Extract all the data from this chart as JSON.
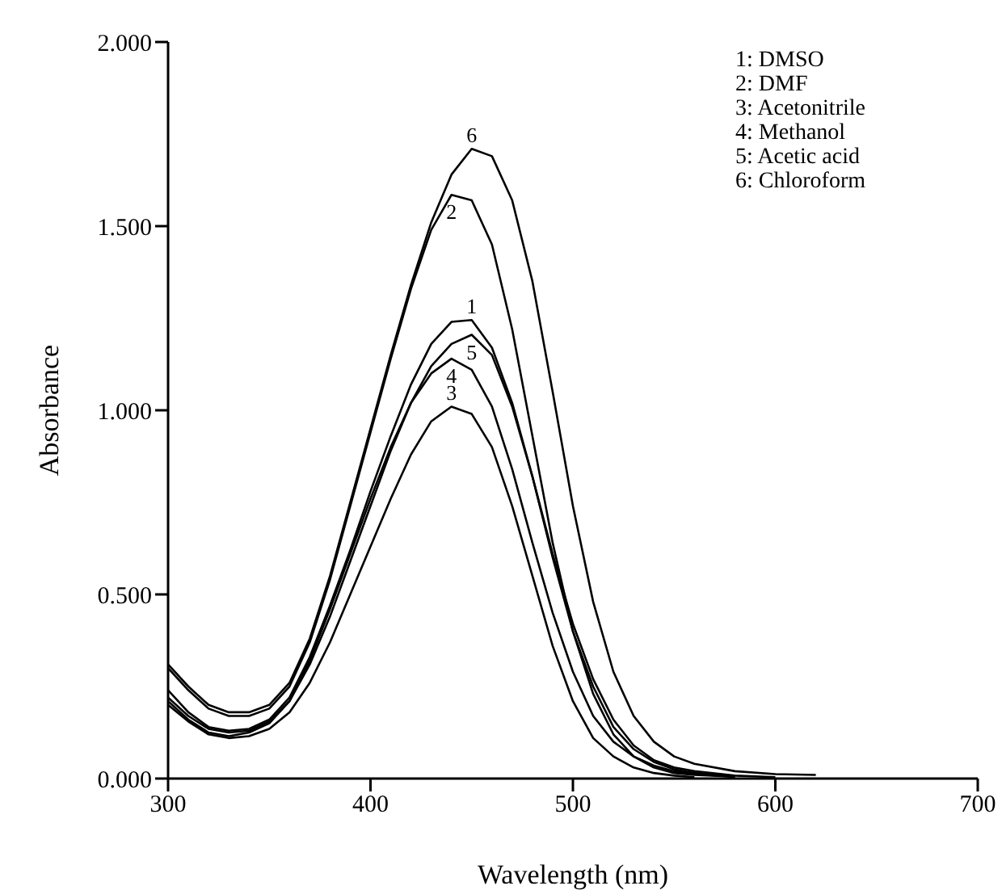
{
  "chart_data": {
    "type": "line",
    "xlabel": "Wavelength (nm)",
    "ylabel": "Absorbance",
    "x": [
      300,
      310,
      320,
      330,
      340,
      350,
      360,
      370,
      380,
      390,
      400,
      410,
      420,
      430,
      440,
      450,
      460,
      470,
      480,
      490,
      500,
      510,
      520,
      530,
      540,
      550,
      560,
      580,
      600,
      620
    ],
    "series": [
      {
        "name": "1",
        "color": "#000000",
        "values": [
          0.24,
          0.18,
          0.14,
          0.13,
          0.135,
          0.16,
          0.22,
          0.33,
          0.47,
          0.62,
          0.78,
          0.93,
          1.07,
          1.18,
          1.24,
          1.245,
          1.17,
          1.02,
          0.82,
          0.6,
          0.4,
          0.25,
          0.14,
          0.08,
          0.045,
          0.025,
          0.015,
          0.005,
          null,
          null
        ]
      },
      {
        "name": "2",
        "color": "#000000",
        "values": [
          0.3,
          0.24,
          0.19,
          0.17,
          0.17,
          0.19,
          0.25,
          0.37,
          0.54,
          0.74,
          0.94,
          1.14,
          1.33,
          1.49,
          1.585,
          1.57,
          1.45,
          1.22,
          0.93,
          0.64,
          0.4,
          0.23,
          0.12,
          0.06,
          0.03,
          0.015,
          0.01,
          0.005,
          null,
          null
        ]
      },
      {
        "name": "3",
        "color": "#000000",
        "values": [
          0.2,
          0.155,
          0.12,
          0.11,
          0.115,
          0.135,
          0.18,
          0.26,
          0.37,
          0.5,
          0.63,
          0.76,
          0.88,
          0.97,
          1.01,
          0.99,
          0.9,
          0.74,
          0.55,
          0.36,
          0.21,
          0.11,
          0.06,
          0.03,
          0.015,
          0.008,
          0.004,
          null,
          null,
          null
        ]
      },
      {
        "name": "4",
        "color": "#000000",
        "values": [
          0.21,
          0.16,
          0.125,
          0.115,
          0.125,
          0.15,
          0.21,
          0.32,
          0.46,
          0.61,
          0.76,
          0.9,
          1.02,
          1.1,
          1.14,
          1.11,
          1.01,
          0.84,
          0.64,
          0.45,
          0.29,
          0.17,
          0.1,
          0.06,
          0.035,
          0.02,
          0.012,
          0.005,
          null,
          null
        ]
      },
      {
        "name": "5",
        "color": "#000000",
        "values": [
          0.22,
          0.17,
          0.135,
          0.125,
          0.13,
          0.155,
          0.21,
          0.31,
          0.44,
          0.59,
          0.74,
          0.89,
          1.02,
          1.12,
          1.18,
          1.205,
          1.15,
          1.01,
          0.82,
          0.61,
          0.42,
          0.27,
          0.16,
          0.09,
          0.05,
          0.03,
          0.02,
          0.008,
          0.004,
          null
        ]
      },
      {
        "name": "6",
        "color": "#000000",
        "values": [
          0.31,
          0.25,
          0.2,
          0.18,
          0.18,
          0.2,
          0.26,
          0.38,
          0.55,
          0.75,
          0.95,
          1.15,
          1.34,
          1.51,
          1.64,
          1.71,
          1.69,
          1.57,
          1.35,
          1.05,
          0.74,
          0.48,
          0.29,
          0.17,
          0.1,
          0.06,
          0.04,
          0.02,
          0.012,
          0.01
        ]
      }
    ],
    "xlim": [
      300,
      700
    ],
    "xticks": [
      300,
      400,
      500,
      600,
      700
    ],
    "ylim": [
      0,
      2
    ],
    "yticks": [
      {
        "value": 0,
        "label": "0.000"
      },
      {
        "value": 0.5,
        "label": "0.500"
      },
      {
        "value": 1,
        "label": "1.000"
      },
      {
        "value": 1.5,
        "label": "1.500"
      },
      {
        "value": 2,
        "label": "2.000"
      }
    ],
    "annotations": [
      "1: DMSO",
      "2: DMF",
      "3: Acetonitrile",
      "4: Methanol",
      "5: Acetic acid",
      "6: Chloroform"
    ],
    "grid": false,
    "legend": false,
    "marker": "none",
    "line_style": "solid"
  }
}
